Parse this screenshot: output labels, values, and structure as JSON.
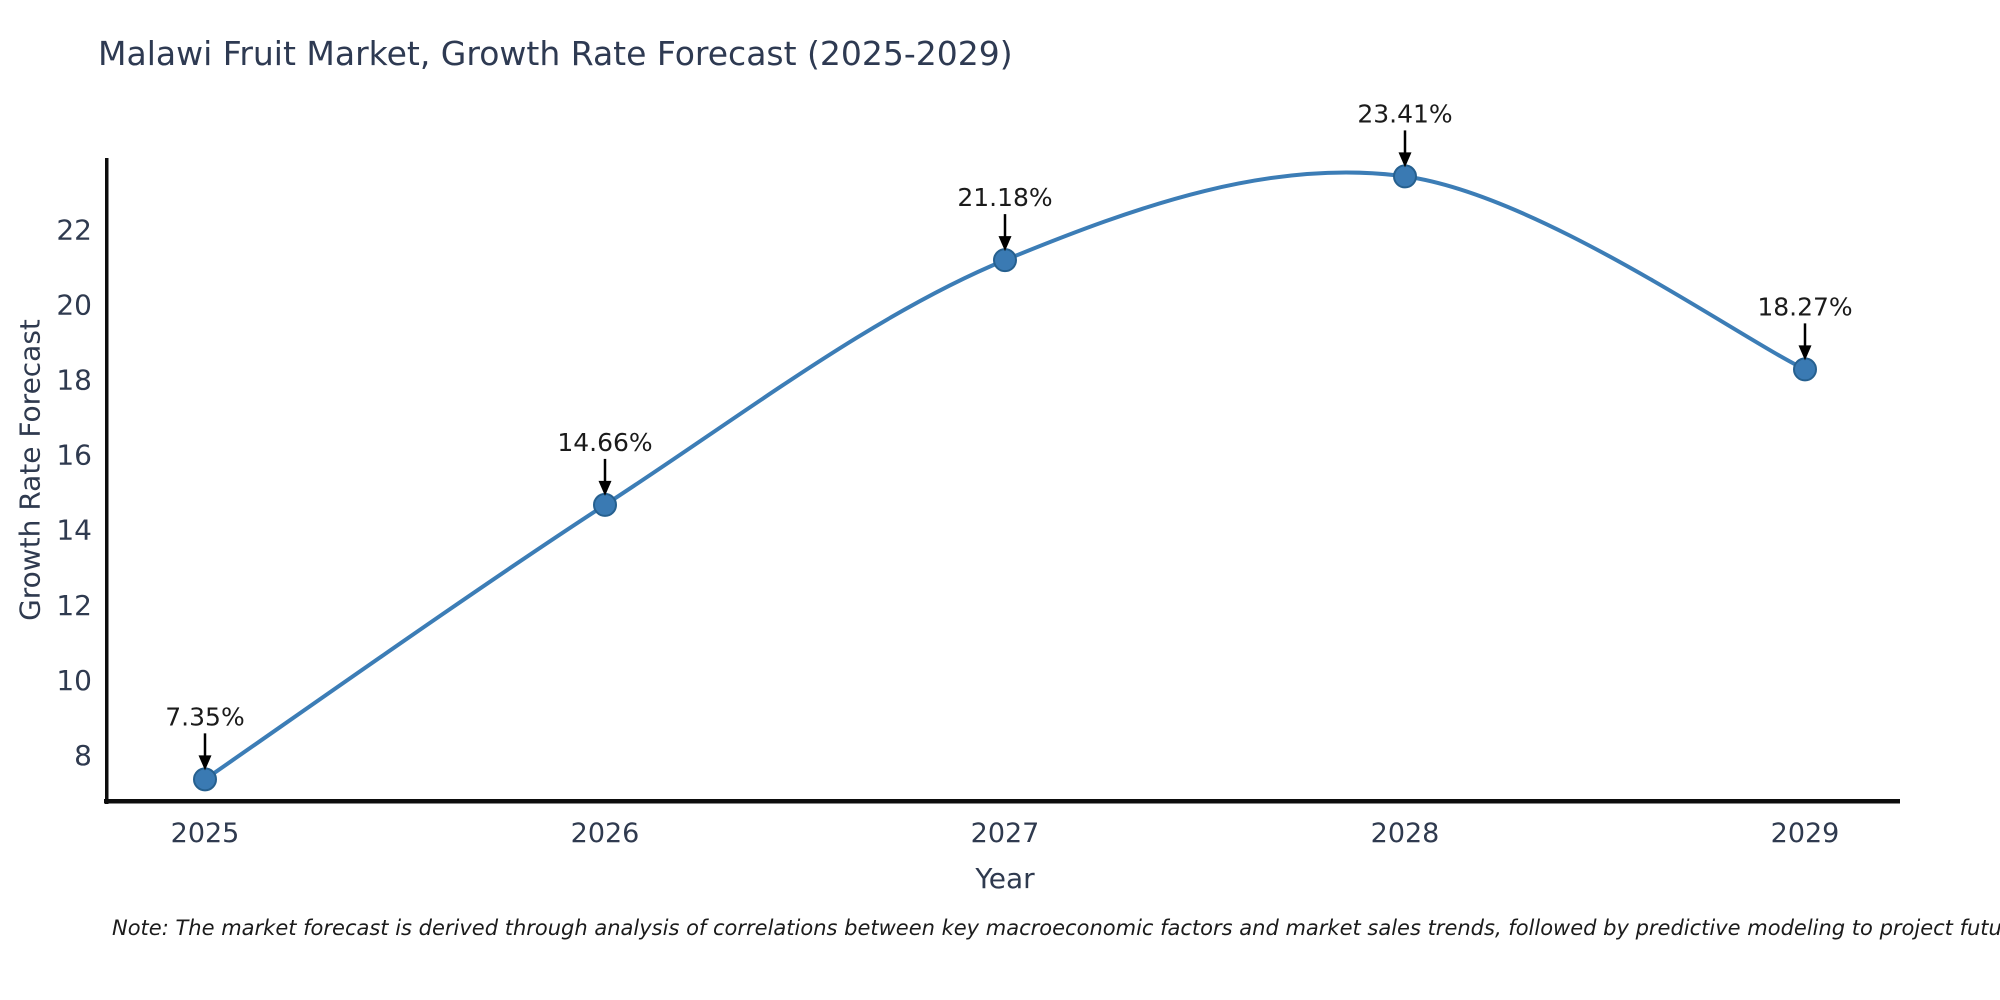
{
  "chart_data": {
    "type": "line",
    "title": "Malawi Fruit Market, Growth Rate Forecast (2025-2029)",
    "xlabel": "Year",
    "ylabel": "Growth Rate Forecast",
    "x": [
      2025,
      2026,
      2027,
      2028,
      2029
    ],
    "series": [
      {
        "name": "Growth Rate Forecast",
        "values": [
          7.35,
          14.66,
          21.18,
          23.41,
          18.27
        ]
      }
    ],
    "point_labels": [
      "7.35%",
      "14.66%",
      "21.18%",
      "23.41%",
      "18.27%"
    ],
    "xticklabels": [
      "2025",
      "2026",
      "2027",
      "2028",
      "2029"
    ],
    "yticks": [
      8,
      10,
      12,
      14,
      16,
      18,
      20,
      22
    ],
    "xlim": [
      2024.75,
      2029.25
    ],
    "ylim": [
      6.8,
      23.9
    ],
    "grid": false,
    "legend": "none",
    "line_shape": "spline",
    "marker": "circle",
    "annotation_arrows": "down",
    "note": "Note: The market forecast is derived through analysis of correlations between key macroeconomic factors and market sales trends, followed by predictive modeling to project future sales",
    "colors": {
      "line": "#3c7db6",
      "marker_fill": "#3a7ab3",
      "marker_edge": "#26608f",
      "axis_text": "#2f3a4f",
      "title_text": "#2e3a52",
      "annotation_text": "#1b1b1b",
      "spine": "#0d0d0d"
    }
  }
}
